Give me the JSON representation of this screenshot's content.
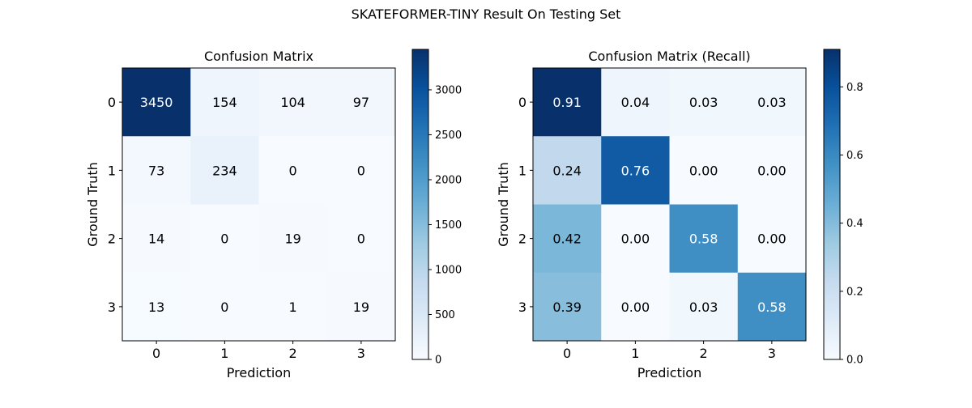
{
  "figure": {
    "suptitle": "SKATEFORMER-TINY Result On Testing Set"
  },
  "chart_data": [
    {
      "type": "heatmap",
      "title": "Confusion Matrix",
      "xlabel": "Prediction",
      "ylabel": "Ground Truth",
      "x_categories": [
        "0",
        "1",
        "2",
        "3"
      ],
      "y_categories": [
        "0",
        "1",
        "2",
        "3"
      ],
      "values": [
        [
          3450,
          154,
          104,
          97
        ],
        [
          73,
          234,
          0,
          0
        ],
        [
          14,
          0,
          19,
          0
        ],
        [
          13,
          0,
          1,
          19
        ]
      ],
      "cell_labels": [
        [
          "3450",
          "154",
          "104",
          "97"
        ],
        [
          "73",
          "234",
          "0",
          "0"
        ],
        [
          "14",
          "0",
          "19",
          "0"
        ],
        [
          "13",
          "0",
          "1",
          "19"
        ]
      ],
      "colormap": "Blues",
      "vmin": 0,
      "vmax": 3450,
      "colorbar_ticks": [
        0,
        500,
        1000,
        1500,
        2000,
        2500,
        3000
      ],
      "colorbar_tick_labels": [
        "0",
        "500",
        "1000",
        "1500",
        "2000",
        "2500",
        "3000"
      ]
    },
    {
      "type": "heatmap",
      "title": "Confusion Matrix (Recall)",
      "xlabel": "Prediction",
      "ylabel": "Ground Truth",
      "x_categories": [
        "0",
        "1",
        "2",
        "3"
      ],
      "y_categories": [
        "0",
        "1",
        "2",
        "3"
      ],
      "values": [
        [
          0.91,
          0.04,
          0.03,
          0.03
        ],
        [
          0.24,
          0.76,
          0.0,
          0.0
        ],
        [
          0.42,
          0.0,
          0.58,
          0.0
        ],
        [
          0.39,
          0.0,
          0.03,
          0.58
        ]
      ],
      "cell_labels": [
        [
          "0.91",
          "0.04",
          "0.03",
          "0.03"
        ],
        [
          "0.24",
          "0.76",
          "0.00",
          "0.00"
        ],
        [
          "0.42",
          "0.00",
          "0.58",
          "0.00"
        ],
        [
          "0.39",
          "0.00",
          "0.03",
          "0.58"
        ]
      ],
      "colormap": "Blues",
      "vmin": 0,
      "vmax": 0.91,
      "colorbar_ticks": [
        0.0,
        0.2,
        0.4,
        0.6,
        0.8
      ],
      "colorbar_tick_labels": [
        "0.0",
        "0.2",
        "0.4",
        "0.6",
        "0.8"
      ]
    }
  ]
}
